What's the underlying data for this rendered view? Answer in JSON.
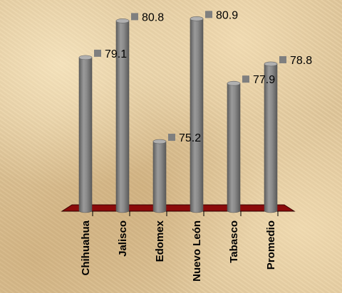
{
  "chart_data": {
    "type": "bar",
    "style": "3d-cylinder",
    "categories": [
      "Chihuahua",
      "Jalisco",
      "Edomex",
      "Nuevo León",
      "Tabasco",
      "Promedio"
    ],
    "values": [
      79.1,
      80.8,
      75.2,
      80.9,
      77.9,
      78.8
    ],
    "value_labels": [
      "79.1",
      "80.8",
      "75.2",
      "80.9",
      "77.9",
      "78.8"
    ],
    "title": "",
    "xlabel": "",
    "ylabel": "",
    "ylim": [
      72,
      81
    ],
    "grid": false,
    "legend": "none",
    "colors": {
      "bar": "#8c8c8c",
      "floor": "#8b0a0a",
      "label_marker": "#7f7f7f",
      "background": "#e2c89b"
    }
  }
}
